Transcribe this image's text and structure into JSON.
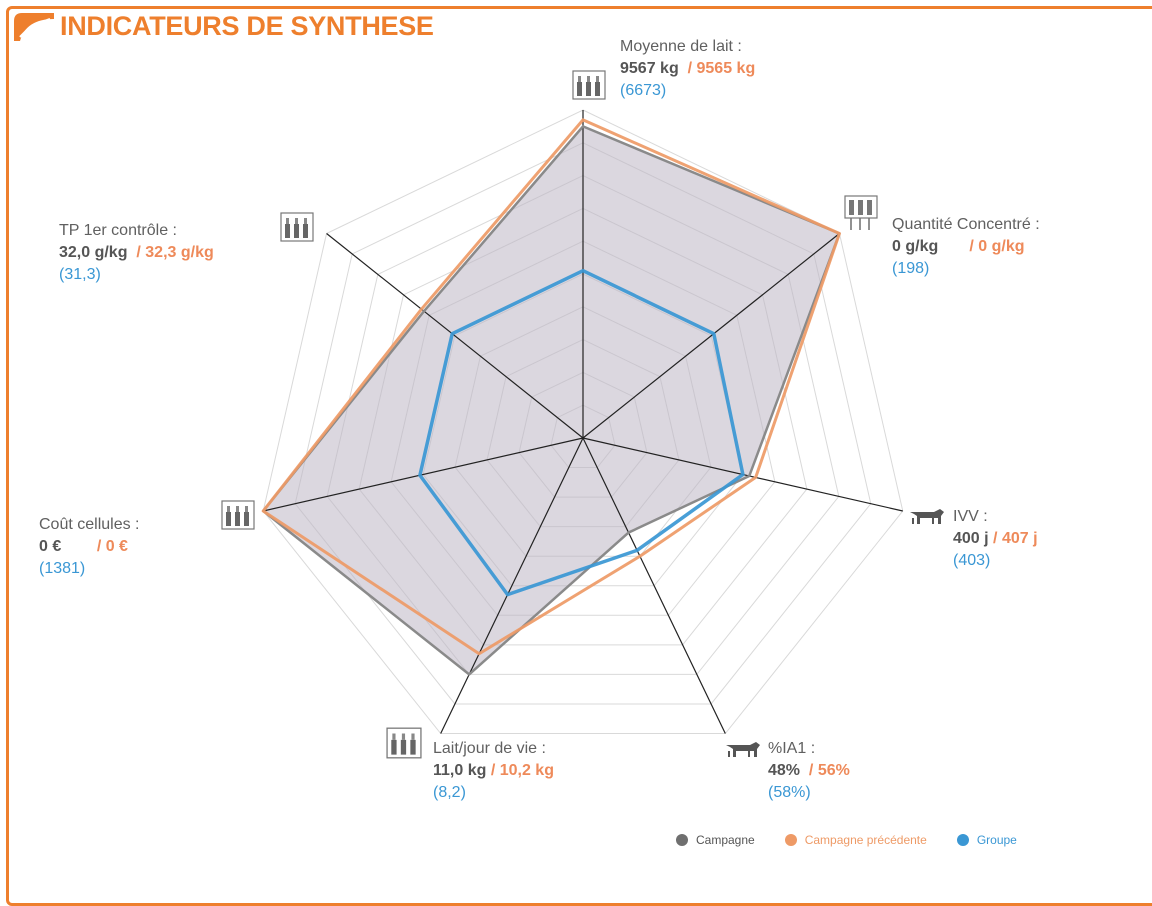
{
  "header": {
    "title": "INDICATEURS DE SYNTHESE"
  },
  "icons": [
    "bottles-icon",
    "feed-silo-icon",
    "cow-icon"
  ],
  "colors": {
    "accent": "#ee7f2d",
    "campagne": "#8a8a8a",
    "campagne_fill": "#c9c3cf",
    "precedente": "#ee9a66",
    "groupe": "#3a97d4"
  },
  "axes": [
    {
      "name": "Moyenne de lait :",
      "current": "9567 kg",
      "previous": "/ 9565 kg",
      "group": "(6673)"
    },
    {
      "name": "Quantité Concentré :",
      "current": "0 g/kg",
      "previous": "/ 0 g/kg",
      "group": "(198)"
    },
    {
      "name": "IVV :",
      "current": "400 j",
      "previous": "/ 407 j",
      "group": "(403)"
    },
    {
      "name": "%IA1 :",
      "current": "48%",
      "previous": "/ 56%",
      "group": "(58%)"
    },
    {
      "name": "Lait/jour de vie :",
      "current": "11,0 kg",
      "previous": "/ 10,2 kg",
      "group": "(8,2)"
    },
    {
      "name": "Coût cellules :",
      "current": "0 €",
      "previous": "/ 0 €",
      "group": "(1381)"
    },
    {
      "name": "TP 1er contrôle :",
      "current": "32,0 g/kg",
      "previous": "/ 32,3 g/kg",
      "group": "(31,3)"
    }
  ],
  "chart_data": {
    "type": "radar",
    "categories": [
      "Moyenne de lait",
      "Quantité Concentré",
      "IVV",
      "%IA1",
      "Lait/jour de vie",
      "Coût cellules",
      "TP 1er contrôle"
    ],
    "series": [
      {
        "name": "Campagne",
        "values": [
          0.95,
          1.0,
          0.52,
          0.32,
          0.8,
          1.0,
          0.62
        ]
      },
      {
        "name": "Campagne précédente",
        "values": [
          0.97,
          1.0,
          0.54,
          0.4,
          0.73,
          1.0,
          0.63
        ]
      },
      {
        "name": "Groupe",
        "values": [
          0.51,
          0.51,
          0.5,
          0.38,
          0.53,
          0.51,
          0.51
        ]
      }
    ],
    "range": [
      0,
      1
    ],
    "grid": true,
    "legend": "bottom-right"
  },
  "legend": [
    {
      "label": "Campagne",
      "color": "#6f6f6f"
    },
    {
      "label": "Campagne précédente",
      "color": "#ee9a66"
    },
    {
      "label": "Groupe",
      "color": "#3a97d4"
    }
  ]
}
